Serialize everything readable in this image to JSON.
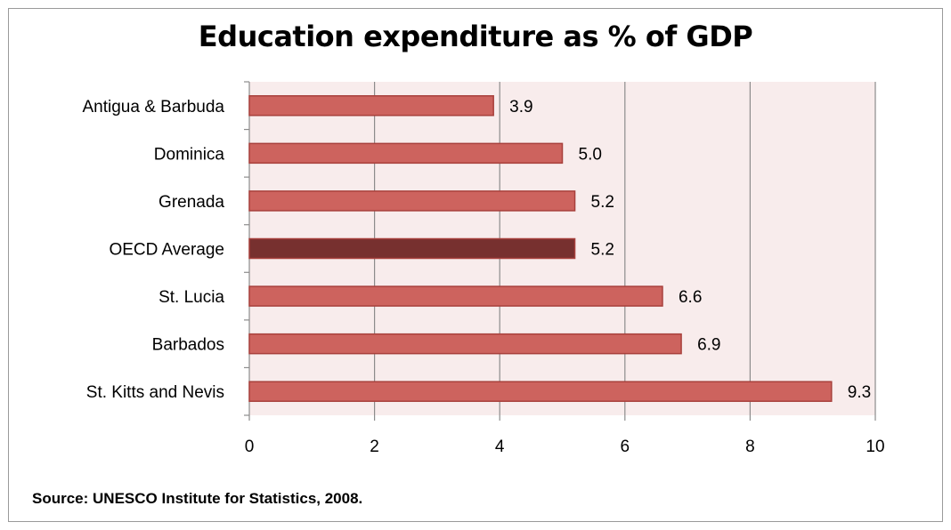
{
  "chart_data": {
    "type": "bar",
    "orientation": "horizontal",
    "title": "Education expenditure as % of GDP",
    "categories": [
      "Antigua & Barbuda",
      "Dominica",
      "Grenada",
      "OECD Average",
      "St. Lucia",
      "Barbados",
      "St. Kitts and Nevis"
    ],
    "values": [
      3.9,
      5.0,
      5.2,
      5.2,
      6.6,
      6.9,
      9.3
    ],
    "value_labels": [
      "3.9",
      "5.0",
      "5.2",
      "5.2",
      "6.6",
      "6.9",
      "9.3"
    ],
    "highlight_category": "OECD Average",
    "xlim": [
      0,
      10
    ],
    "xticks": [
      0,
      2,
      4,
      6,
      8,
      10
    ],
    "xtick_labels": [
      "0",
      "2",
      "4",
      "6",
      "8",
      "10"
    ],
    "xlabel": "",
    "ylabel": "",
    "grid": "vertical",
    "legend": "none",
    "colors": {
      "bar": "#cd635e",
      "bar_border": "#a8403c",
      "highlight_bar": "#77302f",
      "plot_background": "#f8ecec",
      "gridline": "#8c8c8c"
    }
  },
  "source_note": "Source: UNESCO Institute for Statistics, 2008."
}
